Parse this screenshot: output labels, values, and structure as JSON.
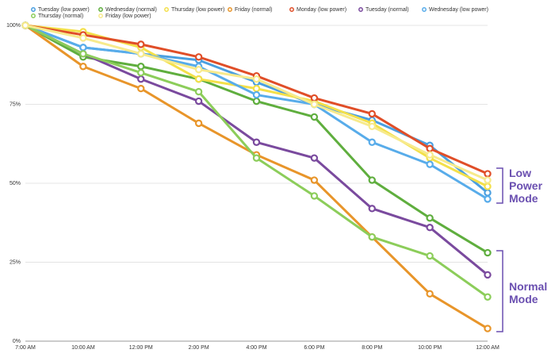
{
  "chart_data": {
    "type": "line",
    "categories": [
      "7:00 AM",
      "10:00 AM",
      "12:00 PM",
      "2:00 PM",
      "4:00 PM",
      "6:00 PM",
      "8:00 PM",
      "10:00 PM",
      "12:00 AM"
    ],
    "ylim": [
      0,
      100
    ],
    "yticks": [
      {
        "value": 0,
        "label": "0%"
      },
      {
        "value": 25,
        "label": "25%"
      },
      {
        "value": 50,
        "label": "50%"
      },
      {
        "value": 75,
        "label": "75%"
      },
      {
        "value": 100,
        "label": "100%"
      }
    ],
    "grid": true,
    "legend": "top",
    "series": [
      {
        "name": "Tuesday (low power)",
        "color": "#4a9fe0",
        "values": [
          100,
          93,
          91,
          89,
          82,
          75,
          70,
          62,
          47
        ]
      },
      {
        "name": "Wednesday (normal)",
        "color": "#5fae3e",
        "values": [
          100,
          90,
          87,
          83,
          76,
          71,
          51,
          39,
          28
        ]
      },
      {
        "name": "Thursday (low power)",
        "color": "#f3e04a",
        "values": [
          100,
          98,
          93,
          83,
          80,
          76,
          69,
          58,
          49
        ]
      },
      {
        "name": "Friday (normal)",
        "color": "#e8952a",
        "values": [
          100,
          87,
          80,
          69,
          59,
          51,
          33,
          15,
          4
        ]
      },
      {
        "name": "Monday (low power)",
        "color": "#e04e28",
        "values": [
          100,
          97,
          94,
          90,
          84,
          77,
          72,
          61,
          53
        ]
      },
      {
        "name": "Tuesday (normal)",
        "color": "#7a4a9e",
        "values": [
          100,
          91,
          83,
          76,
          63,
          58,
          42,
          36,
          21
        ]
      },
      {
        "name": "Wednesday (low power)",
        "color": "#58acea",
        "values": [
          100,
          93,
          91,
          87,
          78,
          75,
          63,
          56,
          45
        ]
      },
      {
        "name": "Thursday (normal)",
        "color": "#8ccd5a",
        "values": [
          100,
          91,
          85,
          79,
          58,
          46,
          33,
          27,
          14
        ]
      },
      {
        "name": "Friday (low power)",
        "color": "#f7ea8c",
        "values": [
          100,
          96,
          91,
          86,
          83,
          75,
          68,
          59,
          51
        ]
      }
    ],
    "annotations": [
      "Low Power Mode",
      "Normal Mode"
    ]
  }
}
